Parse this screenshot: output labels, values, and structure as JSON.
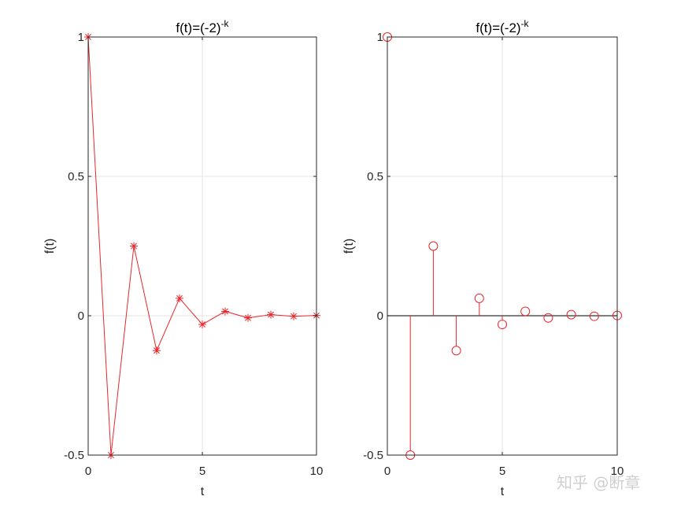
{
  "chart_data": [
    {
      "type": "line",
      "marker": "asterisk",
      "title_base": "f(t)=(-2)",
      "title_exp": "-k",
      "xlabel": "t",
      "ylabel": "f(t)",
      "xlim": [
        0,
        10
      ],
      "ylim": [
        -0.5,
        1
      ],
      "xticks": [
        0,
        5,
        10
      ],
      "yticks": [
        -0.5,
        0,
        0.5,
        1
      ],
      "xtick_labels": [
        "0",
        "5",
        "10"
      ],
      "ytick_labels": [
        "-0.5",
        "0",
        "0.5",
        "1"
      ],
      "grid": true,
      "color": "#e8262b",
      "series": [
        {
          "x": [
            0,
            1,
            2,
            3,
            4,
            5,
            6,
            7,
            8,
            9,
            10
          ],
          "values": [
            1,
            -0.5,
            0.25,
            -0.125,
            0.0625,
            -0.03125,
            0.015625,
            -0.0078125,
            0.00390625,
            -0.001953125,
            0.0009765625
          ]
        }
      ]
    },
    {
      "type": "stem",
      "marker": "circle",
      "title_base": "f(t)=(-2)",
      "title_exp": "-k",
      "xlabel": "t",
      "ylabel": "f(t)",
      "xlim": [
        0,
        10
      ],
      "ylim": [
        -0.5,
        1
      ],
      "xticks": [
        0,
        5,
        10
      ],
      "yticks": [
        -0.5,
        0,
        0.5,
        1
      ],
      "xtick_labels": [
        "0",
        "5",
        "10"
      ],
      "ytick_labels": [
        "-0.5",
        "0",
        "0.5",
        "1"
      ],
      "grid": true,
      "color": "#e8262b",
      "baseline": 0,
      "series": [
        {
          "x": [
            0,
            1,
            2,
            3,
            4,
            5,
            6,
            7,
            8,
            9,
            10
          ],
          "values": [
            1,
            -0.5,
            0.25,
            -0.125,
            0.0625,
            -0.03125,
            0.015625,
            -0.0078125,
            0.00390625,
            -0.001953125,
            0.0009765625
          ]
        }
      ]
    }
  ],
  "watermark": "知乎 @断章"
}
